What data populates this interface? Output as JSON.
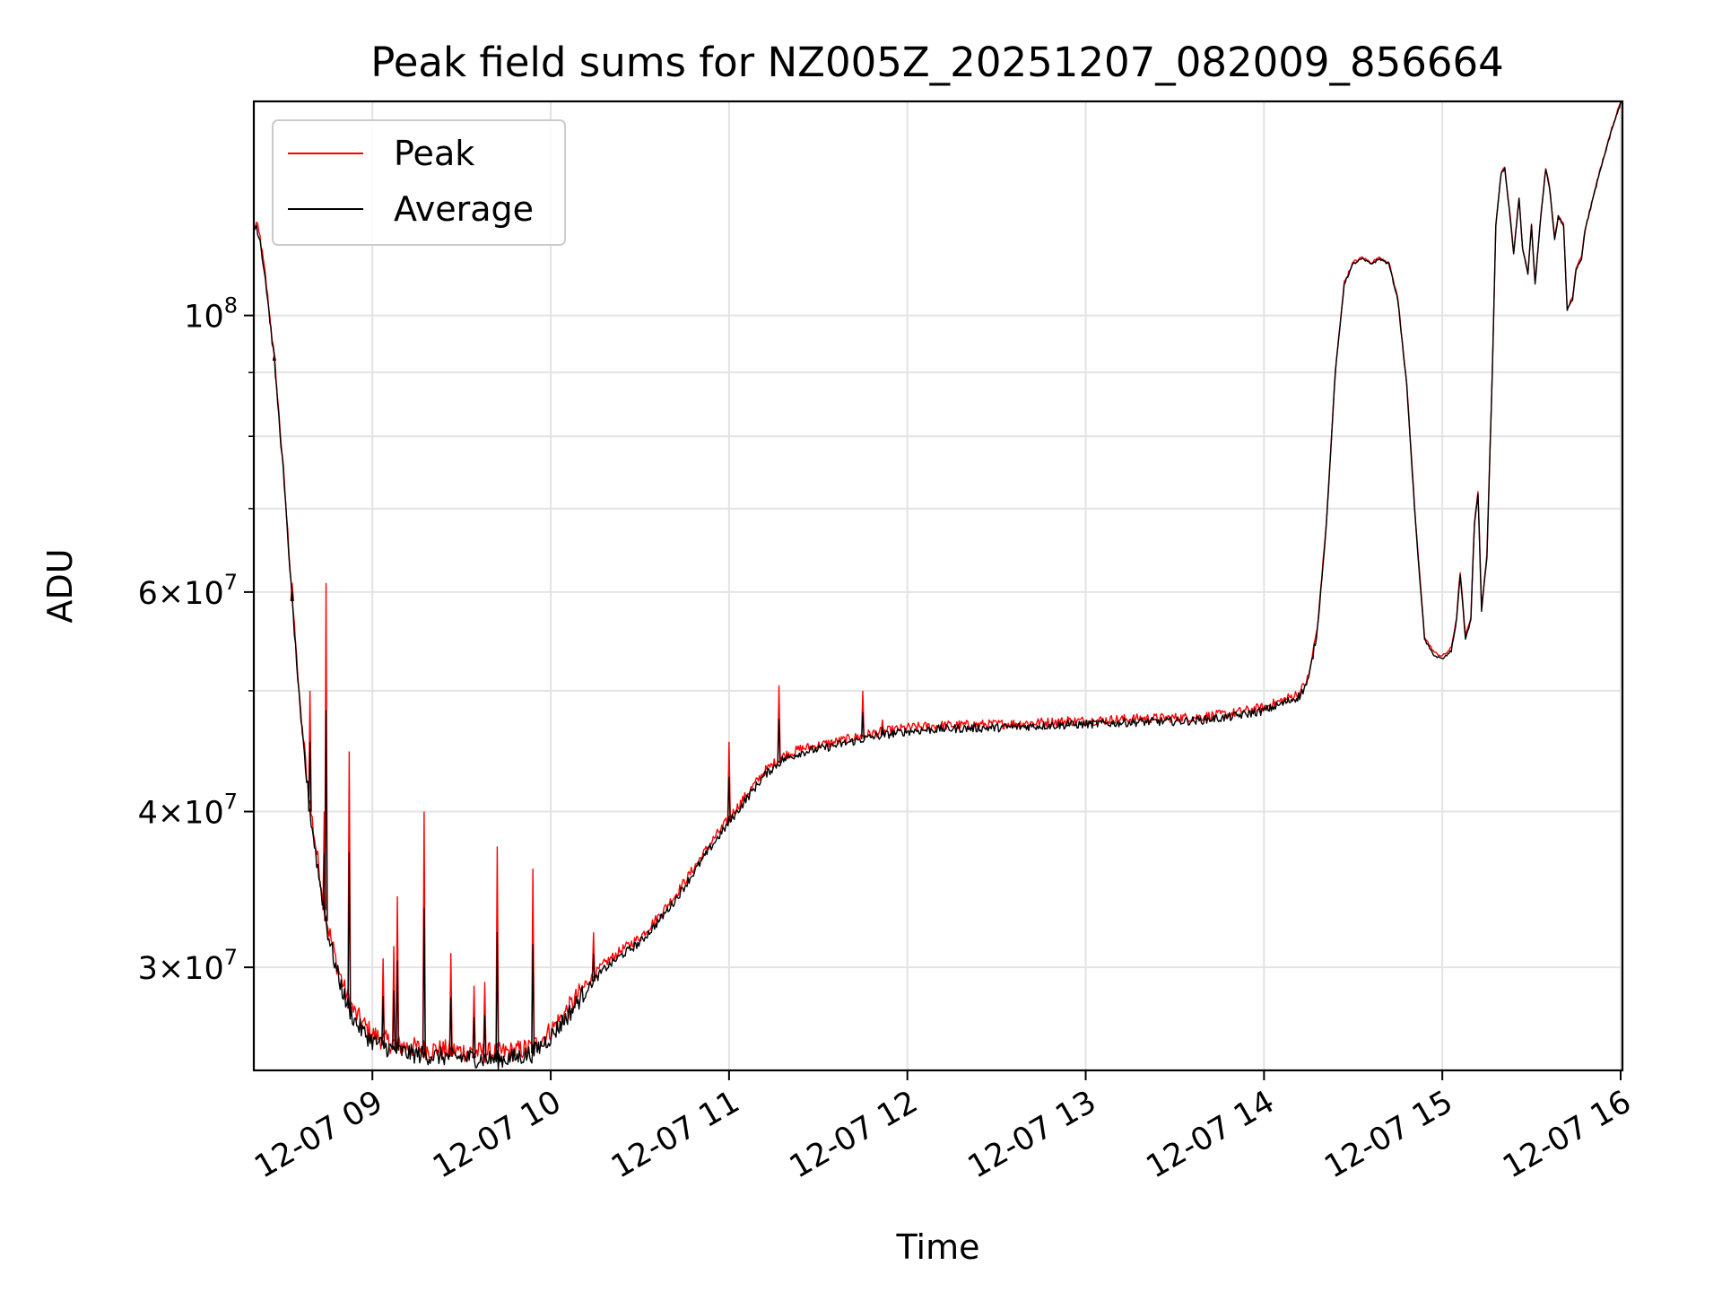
{
  "chart_data": {
    "type": "line",
    "title": "Peak field sums for NZ005Z_20251207_082009_856664",
    "xlabel": "Time",
    "ylabel": "ADU",
    "yscale": "log",
    "xlim": [
      8.335,
      16.01
    ],
    "ylim": [
      24800000,
      148500000
    ],
    "grid": true,
    "legend_position": "top-left",
    "x_unit": "hours of 2025-12-07",
    "x_ticks": [
      {
        "value": 9,
        "label": "12-07 09"
      },
      {
        "value": 10,
        "label": "12-07 10"
      },
      {
        "value": 11,
        "label": "12-07 11"
      },
      {
        "value": 12,
        "label": "12-07 12"
      },
      {
        "value": 13,
        "label": "12-07 13"
      },
      {
        "value": 14,
        "label": "12-07 14"
      },
      {
        "value": 15,
        "label": "12-07 15"
      },
      {
        "value": 16,
        "label": "12-07 16"
      }
    ],
    "y_major_ticks": [
      {
        "value": 30000000,
        "mantissa": "3",
        "exponent": "7"
      },
      {
        "value": 40000000,
        "mantissa": "4",
        "exponent": "7"
      },
      {
        "value": 60000000,
        "mantissa": "6",
        "exponent": "7"
      },
      {
        "value": 100000000,
        "mantissa": "",
        "exponent": "8"
      }
    ],
    "y_minor_grid": [
      50000000,
      70000000,
      80000000,
      90000000
    ],
    "legend": [
      {
        "label": "Peak",
        "color": "#ff0000"
      },
      {
        "label": "Average",
        "color": "#000000"
      }
    ],
    "series": [
      {
        "name": "Average",
        "color": "#000000",
        "x": [
          8.335,
          8.35,
          8.37,
          8.4,
          8.45,
          8.5,
          8.55,
          8.6,
          8.65,
          8.7,
          8.75,
          8.8,
          8.85,
          8.9,
          8.95,
          9.0,
          9.1,
          9.2,
          9.3,
          9.5,
          9.7,
          9.8,
          9.9,
          9.95,
          10.0,
          10.1,
          10.2,
          10.3,
          10.4,
          10.5,
          10.6,
          10.7,
          10.8,
          10.9,
          11.0,
          11.1,
          11.2,
          11.3,
          11.4,
          11.6,
          11.8,
          12.0,
          12.2,
          12.5,
          12.8,
          13.0,
          13.3,
          13.6,
          13.8,
          14.0,
          14.1,
          14.2,
          14.25,
          14.3,
          14.35,
          14.4,
          14.45,
          14.5,
          14.55,
          14.6,
          14.65,
          14.7,
          14.75,
          14.8,
          14.85,
          14.9,
          14.93,
          14.96,
          15.0,
          15.05,
          15.08,
          15.1,
          15.13,
          15.16,
          15.18,
          15.2,
          15.22,
          15.25,
          15.28,
          15.3,
          15.33,
          15.35,
          15.38,
          15.4,
          15.43,
          15.45,
          15.48,
          15.5,
          15.52,
          15.55,
          15.58,
          15.6,
          15.63,
          15.65,
          15.68,
          15.7,
          15.73,
          15.75,
          15.78,
          15.8,
          15.85,
          15.9,
          15.95,
          16.0,
          16.01
        ],
        "y": [
          117000000,
          118000000,
          115000000,
          107000000,
          92000000,
          75000000,
          59000000,
          47000000,
          40000000,
          35500000,
          32000000,
          29800000,
          28200000,
          27200000,
          26600000,
          26200000,
          25800000,
          25600000,
          25500000,
          25400000,
          25300000,
          25400000,
          25600000,
          26000000,
          26400000,
          27500000,
          28800000,
          29900000,
          30700000,
          31400000,
          32600000,
          34000000,
          35700000,
          37500000,
          39200000,
          41000000,
          42800000,
          44000000,
          44600000,
          45200000,
          45900000,
          46400000,
          46600000,
          46700000,
          46900000,
          47000000,
          47200000,
          47300000,
          47600000,
          48200000,
          48800000,
          49500000,
          51000000,
          56000000,
          68000000,
          90000000,
          106000000,
          110000000,
          111000000,
          110000000,
          111000000,
          110000000,
          103000000,
          88000000,
          68000000,
          55000000,
          54000000,
          53300000,
          53000000,
          53800000,
          57000000,
          62000000,
          55000000,
          57000000,
          68000000,
          72000000,
          58000000,
          64000000,
          90000000,
          118000000,
          130000000,
          131000000,
          120000000,
          112000000,
          124000000,
          113000000,
          108000000,
          118000000,
          106000000,
          119000000,
          131000000,
          127000000,
          115000000,
          120000000,
          118000000,
          101000000,
          103000000,
          109000000,
          111000000,
          117000000,
          125000000,
          133000000,
          141000000,
          148000000,
          148000000
        ]
      },
      {
        "name": "Peak",
        "color": "#ff0000",
        "x": [
          8.335,
          8.35,
          8.37,
          8.4,
          8.45,
          8.5,
          8.55,
          8.6,
          8.65,
          8.7,
          8.75,
          8.8,
          8.85,
          8.9,
          8.95,
          9.0,
          9.1,
          9.2,
          9.3,
          9.5,
          9.7,
          9.8,
          9.9,
          9.95,
          10.0,
          10.1,
          10.2,
          10.3,
          10.4,
          10.5,
          10.6,
          10.7,
          10.8,
          10.9,
          11.0,
          11.1,
          11.2,
          11.3,
          11.4,
          11.6,
          11.8,
          12.0,
          12.2,
          12.5,
          12.8,
          13.0,
          13.3,
          13.6,
          13.8,
          14.0,
          14.1,
          14.2,
          14.25,
          14.3,
          14.35,
          14.4,
          14.45,
          14.5,
          14.55,
          14.6,
          14.65,
          14.7,
          14.75,
          14.8,
          14.85,
          14.9,
          14.93,
          14.96,
          15.0,
          15.05,
          15.08,
          15.1,
          15.13,
          15.16,
          15.18,
          15.2,
          15.22,
          15.25,
          15.28,
          15.3,
          15.33,
          15.35,
          15.38,
          15.4,
          15.43,
          15.45,
          15.48,
          15.5,
          15.52,
          15.55,
          15.58,
          15.6,
          15.63,
          15.65,
          15.68,
          15.7,
          15.73,
          15.75,
          15.78,
          15.8,
          15.85,
          15.9,
          15.95,
          16.0,
          16.01
        ],
        "y": [
          117500000,
          118500000,
          115500000,
          107500000,
          92500000,
          75500000,
          59500000,
          47500000,
          40500000,
          36000000,
          32400000,
          30200000,
          28600000,
          27600000,
          27000000,
          26500000,
          26100000,
          25900000,
          25800000,
          25700000,
          25600000,
          25700000,
          25900000,
          26300000,
          26700000,
          27800000,
          29100000,
          30200000,
          31000000,
          31700000,
          32900000,
          34300000,
          36000000,
          37800000,
          39500000,
          41300000,
          43100000,
          44300000,
          44900000,
          45500000,
          46200000,
          46700000,
          46900000,
          47000000,
          47200000,
          47300000,
          47500000,
          47600000,
          47900000,
          48500000,
          49100000,
          49800000,
          51300000,
          56300000,
          68300000,
          90300000,
          106300000,
          110300000,
          111300000,
          110300000,
          111300000,
          110300000,
          103300000,
          88300000,
          68300000,
          55300000,
          54300000,
          53600000,
          53300000,
          54100000,
          57300000,
          62300000,
          55300000,
          57300000,
          68300000,
          72300000,
          58300000,
          64300000,
          90300000,
          118300000,
          130300000,
          131300000,
          120300000,
          112300000,
          124300000,
          113300000,
          108300000,
          118300000,
          106300000,
          119300000,
          131300000,
          127300000,
          115300000,
          120300000,
          118300000,
          101300000,
          103300000,
          109300000,
          111300000,
          117300000,
          125300000,
          133300000,
          141300000,
          148300000,
          148300000
        ],
        "spikes": [
          {
            "x": 8.45,
            "y": 93000000
          },
          {
            "x": 8.55,
            "y": 61000000
          },
          {
            "x": 8.65,
            "y": 50000000
          },
          {
            "x": 8.73,
            "y": 40000000
          },
          {
            "x": 8.74,
            "y": 61000000
          },
          {
            "x": 8.87,
            "y": 44700000
          },
          {
            "x": 9.06,
            "y": 30500000
          },
          {
            "x": 9.12,
            "y": 31200000
          },
          {
            "x": 9.14,
            "y": 34200000
          },
          {
            "x": 9.29,
            "y": 40000000
          },
          {
            "x": 9.44,
            "y": 30800000
          },
          {
            "x": 9.57,
            "y": 29000000
          },
          {
            "x": 9.63,
            "y": 29200000
          },
          {
            "x": 9.7,
            "y": 37500000
          },
          {
            "x": 9.9,
            "y": 36000000
          },
          {
            "x": 10.24,
            "y": 32000000
          },
          {
            "x": 11.0,
            "y": 45500000
          },
          {
            "x": 11.28,
            "y": 50500000
          },
          {
            "x": 11.75,
            "y": 50000000
          },
          {
            "x": 11.86,
            "y": 47400000
          },
          {
            "x": 12.9,
            "y": 47700000
          }
        ]
      }
    ]
  }
}
